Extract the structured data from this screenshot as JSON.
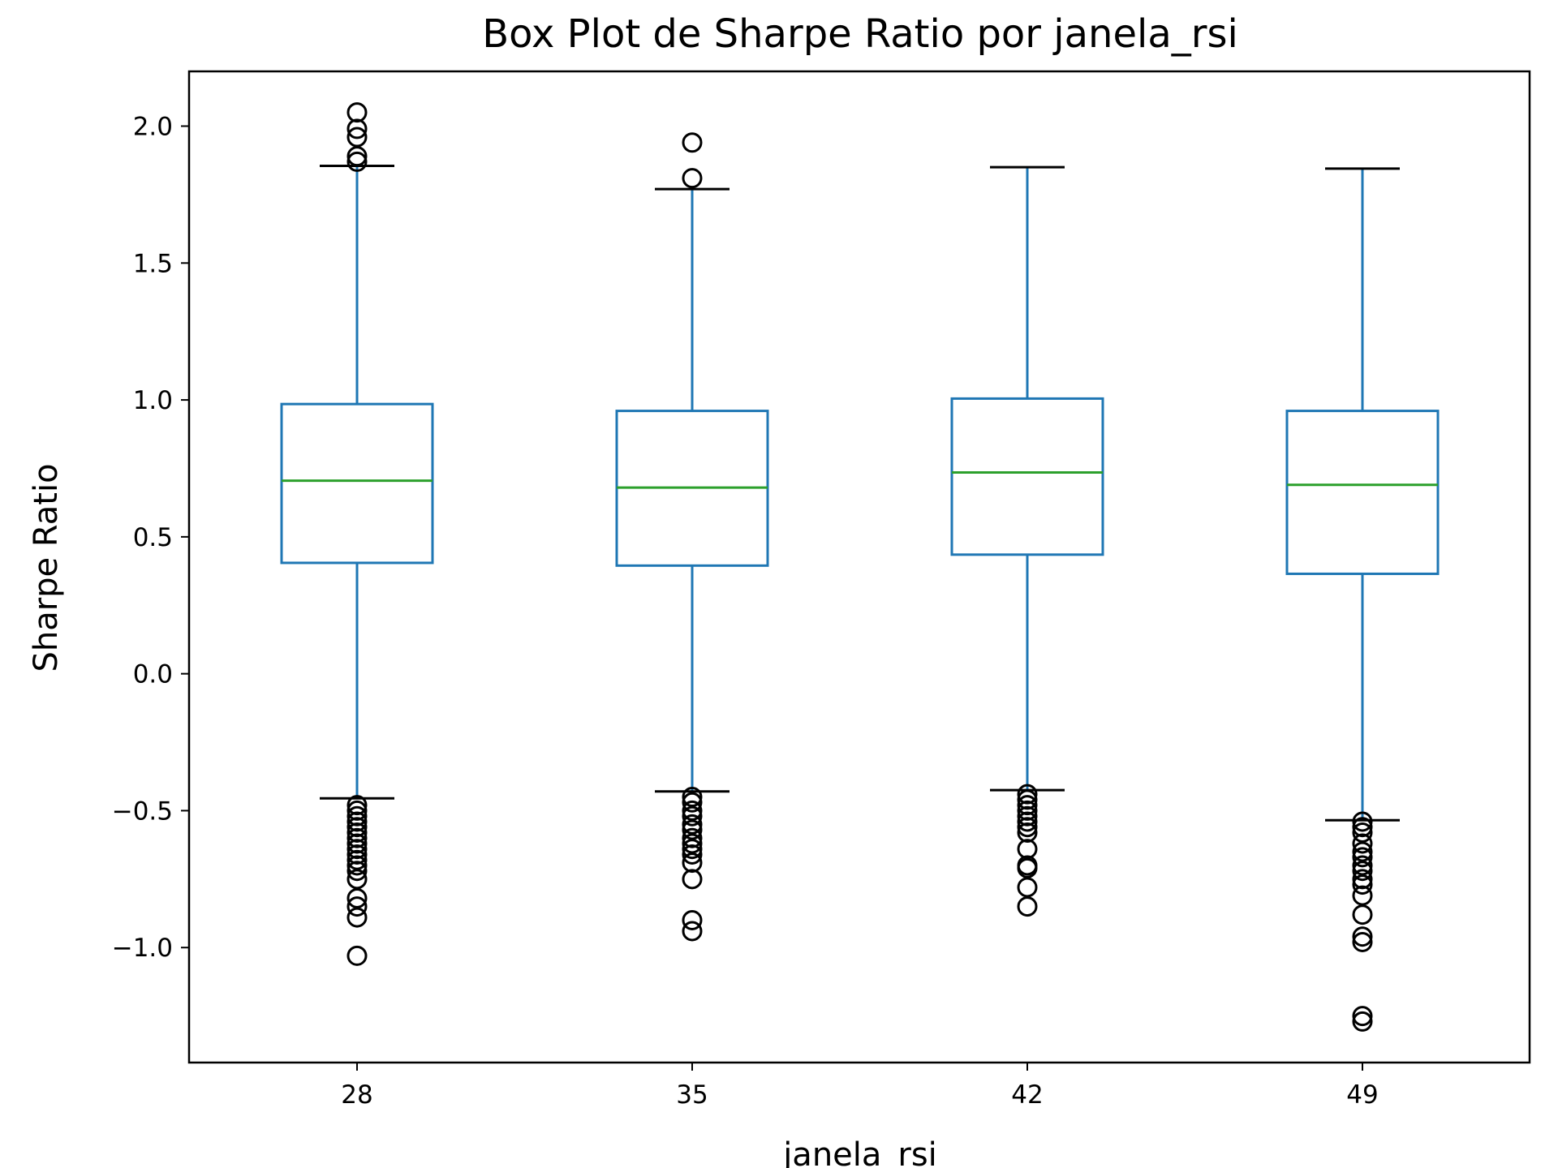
{
  "chart_data": {
    "type": "box",
    "title": "Box Plot de Sharpe Ratio por janela_rsi",
    "xlabel": "janela_rsi",
    "ylabel": "Sharpe Ratio",
    "ylim": [
      -1.42,
      2.2
    ],
    "yticks": [
      -1.0,
      -0.5,
      0.0,
      0.5,
      1.0,
      1.5,
      2.0
    ],
    "ytick_labels": [
      "−1.0",
      "−0.5",
      "0.0",
      "0.5",
      "1.0",
      "1.5",
      "2.0"
    ],
    "categories": [
      "28",
      "35",
      "42",
      "49"
    ],
    "colors": {
      "box": "#1f77b4",
      "median": "#2ca02c",
      "cap": "#000000",
      "flier": "#000000"
    },
    "boxes": [
      {
        "category": "28",
        "whisker_low": -0.455,
        "q1": 0.405,
        "median": 0.705,
        "q3": 0.985,
        "whisker_high": 1.855,
        "fliers": [
          2.05,
          1.99,
          1.96,
          1.89,
          1.87,
          -0.48,
          -0.5,
          -0.52,
          -0.54,
          -0.56,
          -0.58,
          -0.6,
          -0.62,
          -0.64,
          -0.66,
          -0.68,
          -0.7,
          -0.72,
          -0.75,
          -0.82,
          -0.85,
          -0.89,
          -1.03
        ]
      },
      {
        "category": "35",
        "whisker_low": -0.43,
        "q1": 0.395,
        "median": 0.68,
        "q3": 0.96,
        "whisker_high": 1.77,
        "fliers": [
          1.94,
          1.81,
          -0.45,
          -0.47,
          -0.5,
          -0.52,
          -0.55,
          -0.57,
          -0.6,
          -0.62,
          -0.64,
          -0.66,
          -0.69,
          -0.75,
          -0.9,
          -0.94
        ]
      },
      {
        "category": "42",
        "whisker_low": -0.425,
        "q1": 0.435,
        "median": 0.735,
        "q3": 1.005,
        "whisker_high": 1.85,
        "fliers": [
          -0.44,
          -0.46,
          -0.48,
          -0.5,
          -0.52,
          -0.54,
          -0.56,
          -0.58,
          -0.64,
          -0.7,
          -0.71,
          -0.78,
          -0.85
        ]
      },
      {
        "category": "49",
        "whisker_low": -0.535,
        "q1": 0.365,
        "median": 0.69,
        "q3": 0.96,
        "whisker_high": 1.845,
        "fliers": [
          -0.54,
          -0.56,
          -0.58,
          -0.62,
          -0.65,
          -0.67,
          -0.7,
          -0.72,
          -0.75,
          -0.77,
          -0.81,
          -0.88,
          -0.96,
          -0.98,
          -1.25,
          -1.27
        ]
      }
    ]
  }
}
